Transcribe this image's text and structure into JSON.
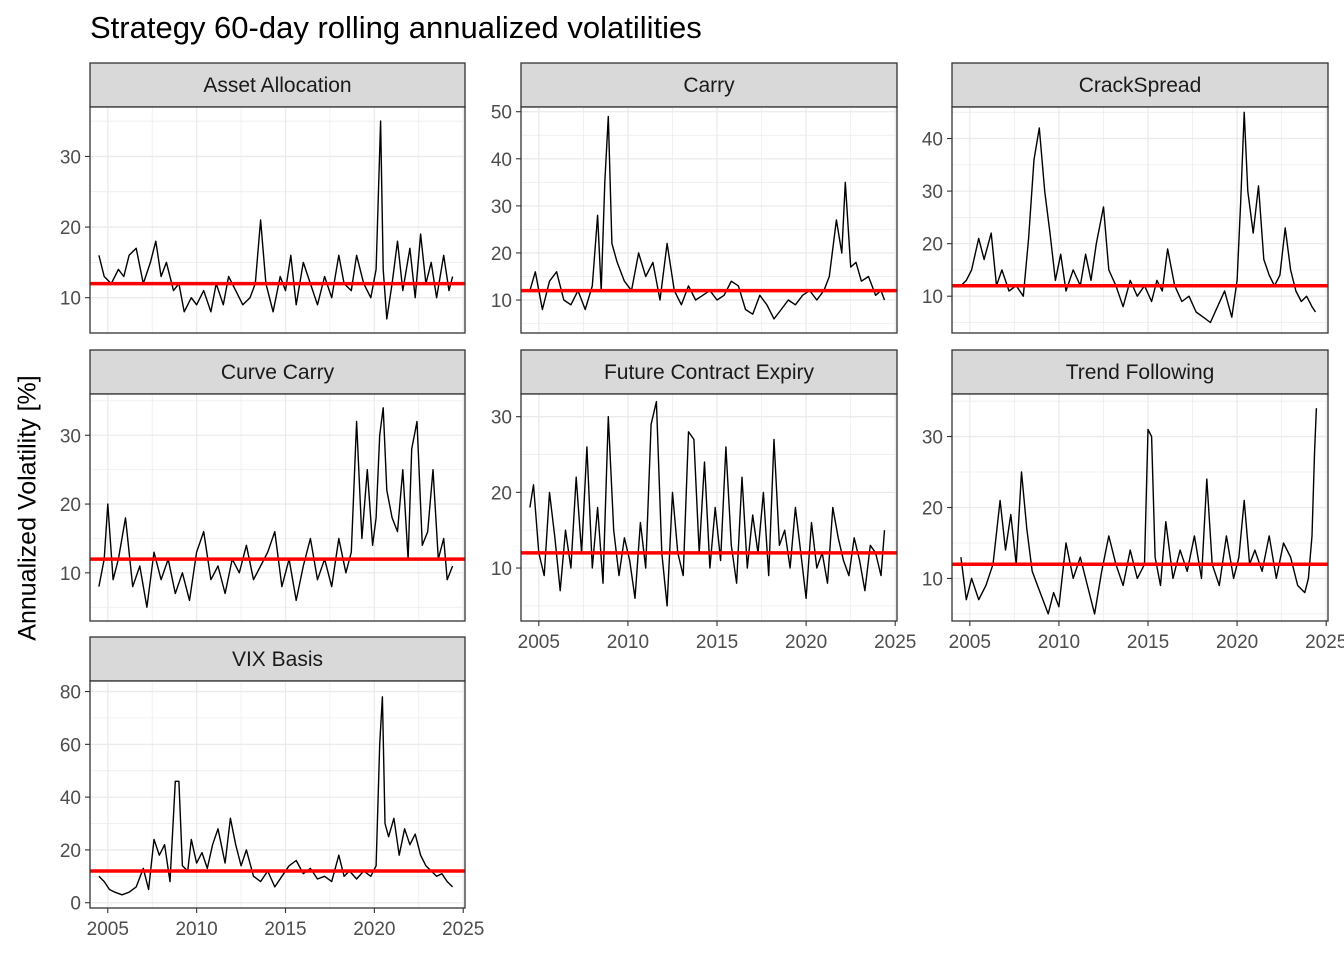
{
  "chart_data": {
    "type": "line",
    "title": "Strategy 60-day rolling annualized volatilities",
    "ylabel": "Annualized Volatility [%]",
    "xlabel": "",
    "xlim": [
      2004.0,
      2025.1
    ],
    "x_ticks": [
      2005,
      2010,
      2015,
      2020,
      2025
    ],
    "grid": true,
    "theme": "bw",
    "colors": {
      "series": "#000000",
      "reference": "#ff0000",
      "strip_fill": "#d9d9d9",
      "grid": "#ebebeb",
      "border": "#333333"
    },
    "reference_line": {
      "y": 12
    },
    "facets": [
      {
        "name": "Asset Allocation",
        "ylim": [
          5,
          37
        ],
        "y_ticks": [
          10,
          20,
          30
        ],
        "x": [
          2004.5,
          2004.8,
          2005.2,
          2005.6,
          2005.9,
          2006.2,
          2006.6,
          2007.0,
          2007.4,
          2007.7,
          2008.0,
          2008.3,
          2008.7,
          2009.0,
          2009.3,
          2009.7,
          2010.0,
          2010.4,
          2010.8,
          2011.1,
          2011.5,
          2011.8,
          2012.2,
          2012.6,
          2013.0,
          2013.3,
          2013.6,
          2013.9,
          2014.3,
          2014.7,
          2015.0,
          2015.3,
          2015.6,
          2016.0,
          2016.4,
          2016.8,
          2017.2,
          2017.6,
          2018.0,
          2018.3,
          2018.7,
          2019.0,
          2019.4,
          2019.8,
          2020.1,
          2020.35,
          2020.5,
          2020.7,
          2021.0,
          2021.3,
          2021.6,
          2022.0,
          2022.3,
          2022.6,
          2022.9,
          2023.2,
          2023.5,
          2023.9,
          2024.2,
          2024.4
        ],
        "y": [
          16,
          13,
          12,
          14,
          13,
          16,
          17,
          12,
          15,
          18,
          13,
          15,
          11,
          12,
          8,
          10,
          9,
          11,
          8,
          12,
          9,
          13,
          11,
          9,
          10,
          12,
          21,
          12,
          8,
          13,
          11,
          16,
          9,
          15,
          12,
          9,
          13,
          10,
          16,
          12,
          11,
          16,
          12,
          10,
          14,
          35,
          14,
          7,
          12,
          18,
          11,
          17,
          10,
          19,
          12,
          15,
          10,
          16,
          11,
          13
        ]
      },
      {
        "name": "Carry",
        "ylim": [
          3,
          51
        ],
        "y_ticks": [
          10,
          20,
          30,
          40,
          50
        ],
        "x": [
          2004.5,
          2004.8,
          2005.2,
          2005.6,
          2006.0,
          2006.4,
          2006.8,
          2007.2,
          2007.6,
          2008.0,
          2008.3,
          2008.5,
          2008.7,
          2008.9,
          2009.1,
          2009.4,
          2009.8,
          2010.2,
          2010.6,
          2011.0,
          2011.4,
          2011.8,
          2012.2,
          2012.6,
          2013.0,
          2013.4,
          2013.8,
          2014.2,
          2014.6,
          2015.0,
          2015.4,
          2015.8,
          2016.2,
          2016.6,
          2017.0,
          2017.4,
          2017.8,
          2018.2,
          2018.6,
          2019.0,
          2019.4,
          2019.8,
          2020.2,
          2020.6,
          2021.0,
          2021.3,
          2021.7,
          2022.0,
          2022.2,
          2022.5,
          2022.8,
          2023.1,
          2023.5,
          2023.9,
          2024.2,
          2024.4
        ],
        "y": [
          12,
          16,
          8,
          14,
          16,
          10,
          9,
          12,
          8,
          13,
          28,
          12,
          35,
          49,
          22,
          18,
          14,
          12,
          20,
          15,
          18,
          10,
          22,
          12,
          9,
          13,
          10,
          11,
          12,
          10,
          11,
          14,
          13,
          8,
          7,
          11,
          9,
          6,
          8,
          10,
          9,
          11,
          12,
          10,
          12,
          15,
          27,
          20,
          35,
          17,
          18,
          14,
          15,
          11,
          12,
          10
        ]
      },
      {
        "name": "CrackSpread",
        "ylim": [
          3,
          46
        ],
        "y_ticks": [
          10,
          20,
          30,
          40
        ],
        "x": [
          2004.5,
          2004.8,
          2005.1,
          2005.5,
          2005.8,
          2006.2,
          2006.5,
          2006.8,
          2007.2,
          2007.6,
          2008.0,
          2008.3,
          2008.6,
          2008.9,
          2009.2,
          2009.5,
          2009.8,
          2010.1,
          2010.4,
          2010.8,
          2011.2,
          2011.5,
          2011.8,
          2012.1,
          2012.5,
          2012.8,
          2013.2,
          2013.6,
          2014.0,
          2014.4,
          2014.8,
          2015.2,
          2015.5,
          2015.8,
          2016.1,
          2016.5,
          2016.9,
          2017.3,
          2017.7,
          2018.1,
          2018.5,
          2018.9,
          2019.3,
          2019.7,
          2020.0,
          2020.2,
          2020.4,
          2020.6,
          2020.9,
          2021.2,
          2021.5,
          2021.8,
          2022.1,
          2022.4,
          2022.7,
          2023.0,
          2023.3,
          2023.6,
          2023.9,
          2024.2,
          2024.4
        ],
        "y": [
          12,
          13,
          15,
          21,
          17,
          22,
          12,
          15,
          11,
          12,
          10,
          21,
          36,
          42,
          30,
          22,
          13,
          18,
          11,
          15,
          12,
          18,
          13,
          20,
          27,
          15,
          12,
          8,
          13,
          10,
          12,
          9,
          13,
          11,
          19,
          12,
          9,
          10,
          7,
          6,
          5,
          8,
          11,
          6,
          13,
          28,
          45,
          30,
          22,
          31,
          17,
          14,
          12,
          14,
          23,
          15,
          11,
          9,
          10,
          8,
          7
        ]
      },
      {
        "name": "Curve Carry",
        "ylim": [
          3,
          36
        ],
        "y_ticks": [
          10,
          20,
          30
        ],
        "x": [
          2004.5,
          2004.8,
          2005.0,
          2005.3,
          2005.6,
          2006.0,
          2006.4,
          2006.8,
          2007.2,
          2007.6,
          2008.0,
          2008.4,
          2008.8,
          2009.2,
          2009.6,
          2010.0,
          2010.4,
          2010.8,
          2011.2,
          2011.6,
          2012.0,
          2012.4,
          2012.8,
          2013.2,
          2013.6,
          2014.0,
          2014.4,
          2014.8,
          2015.2,
          2015.6,
          2016.0,
          2016.4,
          2016.8,
          2017.2,
          2017.6,
          2018.0,
          2018.4,
          2018.7,
          2019.0,
          2019.3,
          2019.6,
          2019.9,
          2020.1,
          2020.3,
          2020.5,
          2020.7,
          2021.0,
          2021.3,
          2021.6,
          2021.9,
          2022.1,
          2022.4,
          2022.7,
          2023.0,
          2023.3,
          2023.6,
          2023.9,
          2024.1,
          2024.4
        ],
        "y": [
          8,
          12,
          20,
          9,
          12,
          18,
          8,
          11,
          5,
          13,
          9,
          12,
          7,
          10,
          6,
          13,
          16,
          9,
          11,
          7,
          12,
          10,
          14,
          9,
          11,
          13,
          16,
          8,
          12,
          6,
          11,
          15,
          9,
          12,
          8,
          15,
          10,
          13,
          32,
          15,
          25,
          14,
          18,
          30,
          34,
          22,
          18,
          16,
          25,
          12,
          28,
          32,
          14,
          16,
          25,
          12,
          15,
          9,
          11
        ]
      },
      {
        "name": "Future Contract Expiry",
        "ylim": [
          3,
          33
        ],
        "y_ticks": [
          10,
          20,
          30
        ],
        "x": [
          2004.5,
          2004.7,
          2005.0,
          2005.3,
          2005.6,
          2005.9,
          2006.2,
          2006.5,
          2006.8,
          2007.1,
          2007.4,
          2007.7,
          2008.0,
          2008.3,
          2008.6,
          2008.9,
          2009.2,
          2009.5,
          2009.8,
          2010.1,
          2010.4,
          2010.7,
          2011.0,
          2011.3,
          2011.6,
          2011.9,
          2012.2,
          2012.5,
          2012.8,
          2013.1,
          2013.4,
          2013.7,
          2014.0,
          2014.3,
          2014.6,
          2014.9,
          2015.2,
          2015.5,
          2015.8,
          2016.1,
          2016.4,
          2016.7,
          2017.0,
          2017.3,
          2017.6,
          2017.9,
          2018.2,
          2018.5,
          2018.8,
          2019.1,
          2019.4,
          2019.7,
          2020.0,
          2020.3,
          2020.6,
          2020.9,
          2021.2,
          2021.5,
          2021.8,
          2022.1,
          2022.4,
          2022.7,
          2023.0,
          2023.3,
          2023.6,
          2023.9,
          2024.2,
          2024.4
        ],
        "y": [
          18,
          21,
          12,
          9,
          20,
          14,
          7,
          15,
          10,
          22,
          12,
          26,
          10,
          18,
          8,
          30,
          15,
          9,
          14,
          11,
          6,
          16,
          10,
          29,
          32,
          12,
          5,
          20,
          12,
          9,
          28,
          27,
          12,
          24,
          10,
          18,
          11,
          26,
          13,
          8,
          22,
          10,
          17,
          12,
          20,
          9,
          27,
          13,
          15,
          10,
          18,
          12,
          6,
          16,
          10,
          12,
          8,
          18,
          14,
          11,
          9,
          14,
          11,
          7,
          13,
          12,
          9,
          15
        ]
      },
      {
        "name": "Trend Following",
        "ylim": [
          4,
          36
        ],
        "y_ticks": [
          10,
          20,
          30
        ],
        "x": [
          2004.5,
          2004.8,
          2005.1,
          2005.5,
          2005.9,
          2006.3,
          2006.7,
          2007.0,
          2007.3,
          2007.6,
          2007.9,
          2008.2,
          2008.5,
          2008.8,
          2009.1,
          2009.4,
          2009.7,
          2010.0,
          2010.4,
          2010.8,
          2011.2,
          2011.6,
          2012.0,
          2012.4,
          2012.8,
          2013.2,
          2013.6,
          2014.0,
          2014.4,
          2014.8,
          2015.0,
          2015.2,
          2015.4,
          2015.7,
          2016.0,
          2016.4,
          2016.8,
          2017.2,
          2017.6,
          2018.0,
          2018.3,
          2018.6,
          2019.0,
          2019.4,
          2019.8,
          2020.1,
          2020.4,
          2020.7,
          2021.0,
          2021.4,
          2021.8,
          2022.2,
          2022.6,
          2023.0,
          2023.4,
          2023.8,
          2024.0,
          2024.2,
          2024.35,
          2024.45
        ],
        "y": [
          13,
          7,
          10,
          7,
          9,
          12,
          21,
          14,
          19,
          12,
          25,
          17,
          11,
          9,
          7,
          5,
          8,
          6,
          15,
          10,
          13,
          9,
          5,
          11,
          16,
          12,
          9,
          14,
          10,
          12,
          31,
          30,
          13,
          9,
          18,
          10,
          14,
          11,
          16,
          10,
          24,
          12,
          9,
          16,
          10,
          13,
          21,
          12,
          14,
          11,
          16,
          10,
          15,
          13,
          9,
          8,
          10,
          16,
          28,
          34
        ]
      },
      {
        "name": "VIX Basis",
        "ylim": [
          -2,
          84
        ],
        "y_ticks": [
          0,
          20,
          40,
          60,
          80
        ],
        "x": [
          2004.5,
          2004.8,
          2005.1,
          2005.4,
          2005.8,
          2006.2,
          2006.6,
          2007.0,
          2007.3,
          2007.6,
          2007.9,
          2008.2,
          2008.5,
          2008.8,
          2009.0,
          2009.2,
          2009.5,
          2009.7,
          2010.0,
          2010.3,
          2010.6,
          2010.9,
          2011.2,
          2011.6,
          2011.9,
          2012.2,
          2012.5,
          2012.8,
          2013.2,
          2013.6,
          2014.0,
          2014.4,
          2014.8,
          2015.2,
          2015.6,
          2016.0,
          2016.4,
          2016.8,
          2017.2,
          2017.6,
          2018.0,
          2018.3,
          2018.6,
          2019.0,
          2019.4,
          2019.8,
          2020.1,
          2020.3,
          2020.45,
          2020.6,
          2020.8,
          2021.1,
          2021.4,
          2021.7,
          2022.0,
          2022.3,
          2022.6,
          2022.9,
          2023.2,
          2023.5,
          2023.8,
          2024.1,
          2024.4
        ],
        "y": [
          10,
          8,
          5,
          4,
          3,
          4,
          6,
          13,
          5,
          24,
          18,
          22,
          8,
          46,
          46,
          14,
          12,
          24,
          15,
          19,
          13,
          22,
          28,
          15,
          32,
          22,
          14,
          20,
          10,
          8,
          12,
          6,
          10,
          14,
          16,
          11,
          13,
          9,
          10,
          8,
          18,
          10,
          12,
          9,
          12,
          10,
          14,
          60,
          78,
          30,
          25,
          32,
          18,
          28,
          22,
          26,
          18,
          14,
          12,
          10,
          11,
          8,
          6
        ]
      }
    ]
  }
}
